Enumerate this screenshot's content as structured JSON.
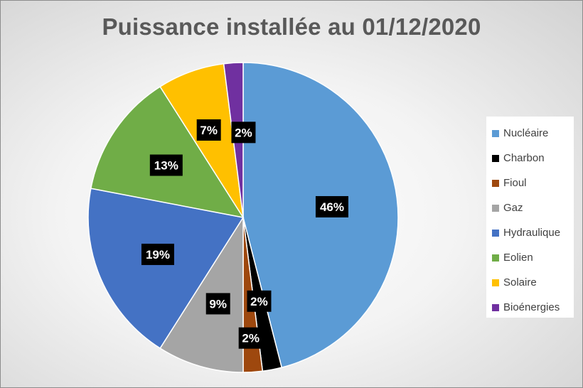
{
  "chart_data": {
    "type": "pie",
    "title": "Puissance installée au 01/12/2020",
    "slices": [
      {
        "label": "Nucléaire",
        "value": 46,
        "display": "46%",
        "color": "#5b9bd5"
      },
      {
        "label": "Charbon",
        "value": 2,
        "display": "2%",
        "color": "#000000"
      },
      {
        "label": "Fioul",
        "value": 2,
        "display": "2%",
        "color": "#9e480e"
      },
      {
        "label": "Gaz",
        "value": 9,
        "display": "9%",
        "color": "#a5a5a5"
      },
      {
        "label": "Hydraulique",
        "value": 19,
        "display": "19%",
        "color": "#4472c4"
      },
      {
        "label": "Eolien",
        "value": 13,
        "display": "13%",
        "color": "#70ad47"
      },
      {
        "label": "Solaire",
        "value": 7,
        "display": "7%",
        "color": "#ffc000"
      },
      {
        "label": "Bioénergies",
        "value": 2,
        "display": "2%",
        "color": "#7030a0"
      }
    ],
    "legend_position": "right"
  }
}
